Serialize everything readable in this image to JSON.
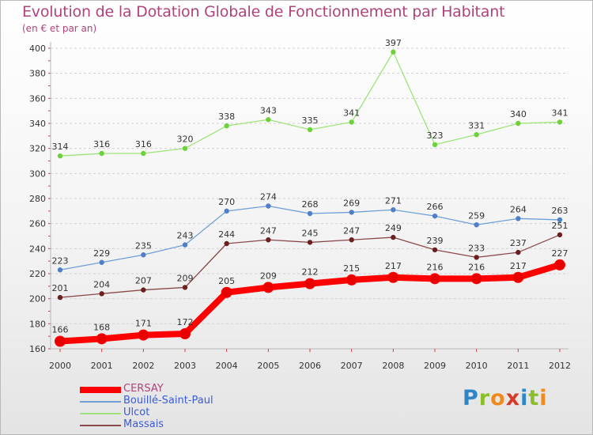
{
  "title": "Evolution de la Dotation Globale de Fonctionnement par Habitant",
  "subtitle": "(en € et par an)",
  "logo": {
    "letters": [
      "P",
      "r",
      "o",
      "x",
      "i",
      "t",
      "i"
    ],
    "colors": [
      "#2e86c8",
      "#8abf2a",
      "#f08a1c",
      "#d83a2a",
      "#2e86c8",
      "#8abf2a",
      "#f08a1c"
    ]
  },
  "chart_data": {
    "type": "line",
    "title": "Evolution de la Dotation Globale de Fonctionnement par Habitant",
    "ylabel": "(en € et par an)",
    "xlabel": "",
    "x": [
      "2000",
      "2001",
      "2002",
      "2003",
      "2004",
      "2005",
      "2006",
      "2007",
      "2008",
      "2009",
      "2010",
      "2011",
      "2012"
    ],
    "ylim": [
      160,
      400
    ],
    "yticks": [
      160,
      180,
      200,
      220,
      240,
      260,
      280,
      300,
      320,
      340,
      360,
      380,
      400
    ],
    "series": [
      {
        "name": "CERSAY",
        "color": "#ff0000",
        "marker": "#e60000",
        "values": [
          166,
          168,
          171,
          172,
          205,
          209,
          212,
          215,
          217,
          216,
          216,
          217,
          227
        ]
      },
      {
        "name": "Bouillé-Saint-Paul",
        "color": "#6f9fd6",
        "marker": "#4f7fc8",
        "values": [
          223,
          229,
          235,
          243,
          270,
          274,
          268,
          269,
          271,
          266,
          259,
          264,
          263
        ]
      },
      {
        "name": "Ulcot",
        "color": "#9ee47a",
        "marker": "#6dd23a",
        "values": [
          314,
          316,
          316,
          320,
          338,
          343,
          335,
          341,
          397,
          323,
          331,
          340,
          341
        ]
      },
      {
        "name": "Massais",
        "color": "#8a4a4a",
        "marker": "#6b1f1f",
        "values": [
          201,
          204,
          207,
          209,
          244,
          247,
          245,
          247,
          249,
          239,
          233,
          237,
          251
        ]
      }
    ]
  }
}
